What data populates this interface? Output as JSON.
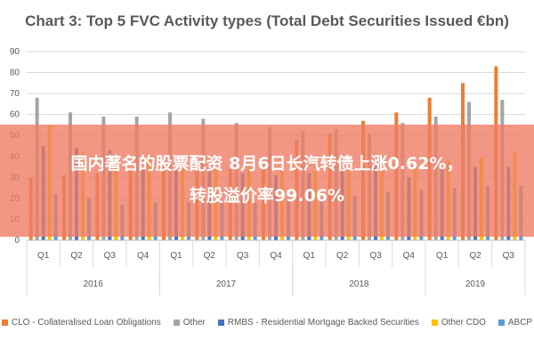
{
  "title": "Chart 3: Top 5 FVC Activity types (Total Debt Securities Issued €bn)",
  "overlay": {
    "line1": "国内著名的股票配资 8月6日长汽转债上涨0.62%，",
    "line2": "转股溢价率99.06%"
  },
  "chart_data": {
    "type": "bar",
    "title": "Chart 3: Top 5 FVC Activity types (Total Debt Securities Issued €bn)",
    "categories": [
      "Q1",
      "Q2",
      "Q3",
      "Q4",
      "Q1",
      "Q2",
      "Q3",
      "Q4",
      "Q1",
      "Q2",
      "Q3",
      "Q4",
      "Q1",
      "Q2",
      "Q3"
    ],
    "years": [
      {
        "label": "2016",
        "start": 0,
        "end": 3
      },
      {
        "label": "2017",
        "start": 4,
        "end": 7
      },
      {
        "label": "2018",
        "start": 8,
        "end": 11
      },
      {
        "label": "2019",
        "start": 12,
        "end": 14
      }
    ],
    "series": [
      {
        "name": "CLO - Collateralised Loan Obligations",
        "color": "#ed7d31",
        "values": [
          30,
          31,
          32,
          34,
          35,
          34,
          34,
          34,
          48,
          51,
          57,
          61,
          68,
          75,
          83
        ]
      },
      {
        "name": "Other",
        "color": "#a5a5a5",
        "values": [
          68,
          61,
          59,
          59,
          61,
          58,
          56,
          54,
          52,
          53,
          51,
          56,
          59,
          66,
          67
        ]
      },
      {
        "name": "RMBS - Residential Mortgage Backed Securities",
        "color": "#4472c4",
        "values": [
          45,
          44,
          43,
          34,
          34,
          33,
          32,
          31,
          32,
          34,
          36,
          30,
          34,
          35,
          35
        ]
      },
      {
        "name": "Other CDO",
        "color": "#ffc000",
        "values": [
          55,
          42,
          40,
          40,
          36,
          35,
          35,
          34,
          33,
          33,
          33,
          34,
          38,
          39,
          42
        ]
      },
      {
        "name": "ABCP",
        "color": "#5b9bd5",
        "values": [
          22,
          20,
          17,
          18,
          18,
          18,
          18,
          19,
          20,
          21,
          23,
          24,
          25,
          26,
          26
        ]
      }
    ],
    "ylim": [
      0,
      90
    ],
    "yticks": [
      0,
      10,
      20,
      30,
      40,
      50,
      60,
      70,
      80,
      90
    ],
    "grid": true,
    "legend": "bottom"
  }
}
